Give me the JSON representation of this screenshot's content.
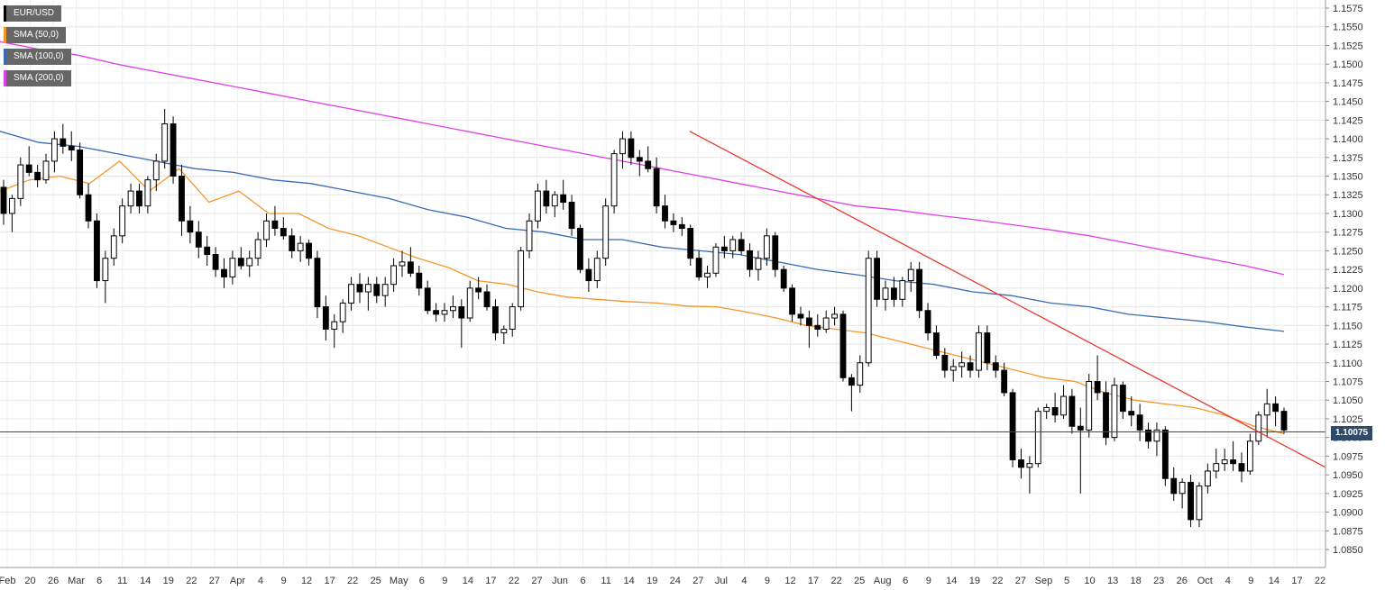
{
  "chart_data": {
    "type": "candlestick",
    "symbol": "EUR/USD",
    "legend": [
      {
        "label": "EUR/USD",
        "color": "#000000"
      },
      {
        "label": "SMA (50,0)",
        "color": "#f5962b"
      },
      {
        "label": "SMA (100,0)",
        "color": "#3a6ab4"
      },
      {
        "label": "SMA (200,0)",
        "color": "#e040e8"
      }
    ],
    "current_price_label": "1.10075",
    "current_price": 1.10075,
    "ylim": [
      1.0825,
      1.1585
    ],
    "y_ticks": [
      "1.1575",
      "1.1550",
      "1.1525",
      "1.1500",
      "1.1475",
      "1.1450",
      "1.1425",
      "1.1400",
      "1.1375",
      "1.1350",
      "1.1325",
      "1.1300",
      "1.1275",
      "1.1250",
      "1.1225",
      "1.1200",
      "1.1175",
      "1.1150",
      "1.1125",
      "1.1100",
      "1.1075",
      "1.1050",
      "1.1025",
      "1.1000",
      "1.0975",
      "1.0950",
      "1.0925",
      "1.0900",
      "1.0875",
      "1.0850"
    ],
    "x_ticks": [
      "Feb",
      "20",
      "26",
      "Mar",
      "6",
      "11",
      "14",
      "19",
      "22",
      "27",
      "Apr",
      "4",
      "9",
      "12",
      "17",
      "22",
      "25",
      "May",
      "6",
      "9",
      "14",
      "17",
      "22",
      "27",
      "Jun",
      "6",
      "11",
      "14",
      "19",
      "24",
      "27",
      "Jul",
      "4",
      "9",
      "12",
      "17",
      "22",
      "25",
      "Aug",
      "6",
      "9",
      "14",
      "19",
      "22",
      "27",
      "Sep",
      "5",
      "10",
      "13",
      "18",
      "23",
      "26",
      "Oct",
      "4",
      "9",
      "14",
      "17",
      "22"
    ],
    "candles": [
      [
        1.1335,
        1.1345,
        1.1285,
        1.13
      ],
      [
        1.13,
        1.1325,
        1.1275,
        1.132
      ],
      [
        1.132,
        1.1375,
        1.131,
        1.1365
      ],
      [
        1.1365,
        1.139,
        1.135,
        1.1355
      ],
      [
        1.1355,
        1.1365,
        1.1335,
        1.1345
      ],
      [
        1.1345,
        1.138,
        1.134,
        1.137
      ],
      [
        1.137,
        1.141,
        1.1355,
        1.14
      ],
      [
        1.14,
        1.142,
        1.138,
        1.139
      ],
      [
        1.139,
        1.141,
        1.137,
        1.1385
      ],
      [
        1.1385,
        1.1395,
        1.132,
        1.1325
      ],
      [
        1.1325,
        1.134,
        1.128,
        1.129
      ],
      [
        1.129,
        1.13,
        1.12,
        1.121
      ],
      [
        1.121,
        1.125,
        1.118,
        1.124
      ],
      [
        1.124,
        1.128,
        1.123,
        1.127
      ],
      [
        1.127,
        1.132,
        1.126,
        1.131
      ],
      [
        1.131,
        1.134,
        1.13,
        1.133
      ],
      [
        1.133,
        1.134,
        1.13,
        1.131
      ],
      [
        1.131,
        1.135,
        1.13,
        1.1345
      ],
      [
        1.1345,
        1.138,
        1.133,
        1.137
      ],
      [
        1.137,
        1.144,
        1.136,
        1.142
      ],
      [
        1.142,
        1.143,
        1.134,
        1.135
      ],
      [
        1.135,
        1.1365,
        1.127,
        1.129
      ],
      [
        1.129,
        1.131,
        1.126,
        1.1275
      ],
      [
        1.1275,
        1.129,
        1.124,
        1.1255
      ],
      [
        1.1255,
        1.127,
        1.123,
        1.1245
      ],
      [
        1.1245,
        1.1255,
        1.1215,
        1.1225
      ],
      [
        1.1225,
        1.124,
        1.12,
        1.1215
      ],
      [
        1.1215,
        1.125,
        1.1205,
        1.124
      ],
      [
        1.124,
        1.1255,
        1.1225,
        1.123
      ],
      [
        1.123,
        1.125,
        1.1215,
        1.124
      ],
      [
        1.124,
        1.1275,
        1.123,
        1.1265
      ],
      [
        1.1265,
        1.13,
        1.1255,
        1.129
      ],
      [
        1.129,
        1.131,
        1.127,
        1.128
      ],
      [
        1.128,
        1.1295,
        1.1265,
        1.127
      ],
      [
        1.127,
        1.128,
        1.124,
        1.125
      ],
      [
        1.125,
        1.127,
        1.1235,
        1.126
      ],
      [
        1.126,
        1.1265,
        1.123,
        1.124
      ],
      [
        1.124,
        1.125,
        1.116,
        1.1175
      ],
      [
        1.1175,
        1.119,
        1.113,
        1.1145
      ],
      [
        1.1145,
        1.1165,
        1.112,
        1.1155
      ],
      [
        1.1155,
        1.1185,
        1.114,
        1.118
      ],
      [
        1.118,
        1.1215,
        1.117,
        1.1205
      ],
      [
        1.1205,
        1.122,
        1.118,
        1.1195
      ],
      [
        1.1195,
        1.1215,
        1.117,
        1.1205
      ],
      [
        1.1205,
        1.1215,
        1.118,
        1.119
      ],
      [
        1.119,
        1.1215,
        1.1175,
        1.1205
      ],
      [
        1.1205,
        1.124,
        1.1195,
        1.123
      ],
      [
        1.123,
        1.125,
        1.1215,
        1.1235
      ],
      [
        1.1235,
        1.1255,
        1.1215,
        1.122
      ],
      [
        1.122,
        1.123,
        1.119,
        1.12
      ],
      [
        1.12,
        1.121,
        1.1165,
        1.117
      ],
      [
        1.117,
        1.118,
        1.1155,
        1.1165
      ],
      [
        1.1165,
        1.118,
        1.1155,
        1.117
      ],
      [
        1.117,
        1.119,
        1.116,
        1.1175
      ],
      [
        1.1175,
        1.1185,
        1.112,
        1.116
      ],
      [
        1.116,
        1.121,
        1.1155,
        1.12
      ],
      [
        1.12,
        1.1215,
        1.1185,
        1.1195
      ],
      [
        1.1195,
        1.1205,
        1.117,
        1.1175
      ],
      [
        1.1175,
        1.1185,
        1.113,
        1.114
      ],
      [
        1.114,
        1.115,
        1.1125,
        1.1145
      ],
      [
        1.1145,
        1.118,
        1.1135,
        1.1175
      ],
      [
        1.1175,
        1.1255,
        1.117,
        1.125
      ],
      [
        1.125,
        1.13,
        1.124,
        1.129
      ],
      [
        1.129,
        1.134,
        1.128,
        1.133
      ],
      [
        1.133,
        1.1345,
        1.13,
        1.131
      ],
      [
        1.131,
        1.133,
        1.1295,
        1.1325
      ],
      [
        1.1325,
        1.1345,
        1.1305,
        1.1315
      ],
      [
        1.1315,
        1.1325,
        1.127,
        1.128
      ],
      [
        1.128,
        1.1285,
        1.122,
        1.1225
      ],
      [
        1.1225,
        1.124,
        1.1195,
        1.121
      ],
      [
        1.121,
        1.125,
        1.12,
        1.124
      ],
      [
        1.124,
        1.132,
        1.123,
        1.131
      ],
      [
        1.131,
        1.1385,
        1.13,
        1.138
      ],
      [
        1.138,
        1.141,
        1.136,
        1.14
      ],
      [
        1.14,
        1.141,
        1.1365,
        1.1375
      ],
      [
        1.1375,
        1.1385,
        1.135,
        1.137
      ],
      [
        1.137,
        1.139,
        1.1355,
        1.136
      ],
      [
        1.136,
        1.1375,
        1.13,
        1.131
      ],
      [
        1.131,
        1.1325,
        1.128,
        1.129
      ],
      [
        1.129,
        1.13,
        1.1275,
        1.1285
      ],
      [
        1.1285,
        1.1295,
        1.127,
        1.128
      ],
      [
        1.128,
        1.1285,
        1.123,
        1.124
      ],
      [
        1.124,
        1.125,
        1.121,
        1.1215
      ],
      [
        1.1215,
        1.123,
        1.12,
        1.122
      ],
      [
        1.122,
        1.126,
        1.1215,
        1.1255
      ],
      [
        1.1255,
        1.127,
        1.124,
        1.125
      ],
      [
        1.125,
        1.127,
        1.124,
        1.1265
      ],
      [
        1.1265,
        1.1275,
        1.1245,
        1.125
      ],
      [
        1.125,
        1.126,
        1.1215,
        1.1225
      ],
      [
        1.1225,
        1.125,
        1.121,
        1.124
      ],
      [
        1.124,
        1.128,
        1.123,
        1.127
      ],
      [
        1.127,
        1.1275,
        1.1215,
        1.1225
      ],
      [
        1.1225,
        1.123,
        1.1195,
        1.12
      ],
      [
        1.12,
        1.1205,
        1.1155,
        1.1165
      ],
      [
        1.1165,
        1.1175,
        1.115,
        1.116
      ],
      [
        1.116,
        1.117,
        1.112,
        1.115
      ],
      [
        1.115,
        1.1165,
        1.1135,
        1.1145
      ],
      [
        1.1145,
        1.117,
        1.114,
        1.116
      ],
      [
        1.116,
        1.1175,
        1.115,
        1.1165
      ],
      [
        1.1165,
        1.117,
        1.1075,
        1.108
      ],
      [
        1.108,
        1.1085,
        1.1035,
        1.107
      ],
      [
        1.107,
        1.111,
        1.106,
        1.11
      ],
      [
        1.11,
        1.125,
        1.1095,
        1.124
      ],
      [
        1.124,
        1.125,
        1.1175,
        1.1185
      ],
      [
        1.1185,
        1.121,
        1.117,
        1.12
      ],
      [
        1.12,
        1.1215,
        1.1175,
        1.1185
      ],
      [
        1.1185,
        1.1215,
        1.1175,
        1.121
      ],
      [
        1.121,
        1.1235,
        1.1195,
        1.1225
      ],
      [
        1.1225,
        1.1235,
        1.116,
        1.117
      ],
      [
        1.117,
        1.118,
        1.113,
        1.114
      ],
      [
        1.114,
        1.115,
        1.1105,
        1.111
      ],
      [
        1.111,
        1.112,
        1.108,
        1.109
      ],
      [
        1.109,
        1.1105,
        1.1075,
        1.1095
      ],
      [
        1.1095,
        1.1115,
        1.108,
        1.11
      ],
      [
        1.11,
        1.111,
        1.108,
        1.109
      ],
      [
        1.109,
        1.115,
        1.108,
        1.114
      ],
      [
        1.114,
        1.115,
        1.109,
        1.11
      ],
      [
        1.11,
        1.111,
        1.108,
        1.109
      ],
      [
        1.109,
        1.11,
        1.1055,
        1.106
      ],
      [
        1.106,
        1.1065,
        1.096,
        1.097
      ],
      [
        1.097,
        1.0985,
        1.0945,
        1.096
      ],
      [
        1.096,
        1.0975,
        1.0925,
        1.0965
      ],
      [
        1.0965,
        1.104,
        1.096,
        1.1035
      ],
      [
        1.1035,
        1.1045,
        1.1025,
        1.104
      ],
      [
        1.104,
        1.106,
        1.102,
        1.103
      ],
      [
        1.103,
        1.107,
        1.1025,
        1.1055
      ],
      [
        1.1055,
        1.1065,
        1.1005,
        1.1015
      ],
      [
        1.1015,
        1.104,
        1.0925,
        1.101
      ],
      [
        1.101,
        1.1085,
        1.1,
        1.1075
      ],
      [
        1.1075,
        1.111,
        1.105,
        1.106
      ],
      [
        1.106,
        1.1075,
        1.099,
        1.1
      ],
      [
        1.1,
        1.108,
        1.0995,
        1.107
      ],
      [
        1.107,
        1.1075,
        1.1025,
        1.1035
      ],
      [
        1.1035,
        1.1055,
        1.1015,
        1.103
      ],
      [
        1.103,
        1.1045,
        1.0995,
        1.101
      ],
      [
        1.101,
        1.102,
        1.0985,
        1.0995
      ],
      [
        1.0995,
        1.102,
        1.0975,
        1.101
      ],
      [
        1.101,
        1.1015,
        1.0935,
        1.0945
      ],
      [
        1.0945,
        1.096,
        1.0915,
        1.0925
      ],
      [
        1.0925,
        1.0945,
        1.0905,
        1.094
      ],
      [
        1.094,
        1.095,
        1.088,
        1.089
      ],
      [
        1.089,
        1.094,
        1.088,
        1.0935
      ],
      [
        1.0935,
        1.0965,
        1.0925,
        1.0955
      ],
      [
        1.0955,
        1.0985,
        1.0945,
        1.0965
      ],
      [
        1.0965,
        1.0985,
        1.0955,
        1.097
      ],
      [
        1.097,
        1.0995,
        1.0955,
        1.0965
      ],
      [
        1.0965,
        1.098,
        1.094,
        1.0955
      ],
      [
        1.0955,
        1.1005,
        1.095,
        1.0995
      ],
      [
        1.0995,
        1.1035,
        1.099,
        1.103
      ],
      [
        1.103,
        1.1065,
        1.1,
        1.1045
      ],
      [
        1.1045,
        1.1055,
        1.1015,
        1.1035
      ],
      [
        1.1035,
        1.104,
        1.1005,
        1.101
      ]
    ],
    "sma50": [
      [
        1.133,
        1.1345
      ],
      [
        1.135,
        1.134
      ],
      [
        1.137,
        1.133
      ],
      [
        1.136,
        1.1315
      ],
      [
        1.133,
        1.13
      ],
      [
        1.13,
        1.128
      ],
      [
        1.127,
        1.1255
      ],
      [
        1.124,
        1.1228
      ],
      [
        1.121,
        1.1205
      ],
      [
        1.1195,
        1.1188
      ],
      [
        1.1185,
        1.1182
      ],
      [
        1.118,
        1.1176
      ],
      [
        1.1175,
        1.1168
      ],
      [
        1.116,
        1.115
      ],
      [
        1.1145,
        1.114
      ],
      [
        1.113,
        1.112
      ],
      [
        1.111,
        1.11
      ],
      [
        1.109,
        1.108
      ],
      [
        1.1075,
        1.106
      ],
      [
        1.105,
        1.1045
      ],
      [
        1.104,
        1.103
      ],
      [
        1.1015,
        1.1005
      ]
    ],
    "sma100": [
      [
        1.141,
        1.1395
      ],
      [
        1.139,
        1.138
      ],
      [
        1.137,
        1.136
      ],
      [
        1.1355,
        1.1345
      ],
      [
        1.134,
        1.133
      ],
      [
        1.132,
        1.1305
      ],
      [
        1.1295,
        1.128
      ],
      [
        1.1275,
        1.1265
      ],
      [
        1.1265,
        1.1255
      ],
      [
        1.125,
        1.1245
      ],
      [
        1.1235,
        1.1225
      ],
      [
        1.1218,
        1.121
      ],
      [
        1.1205,
        1.1195
      ],
      [
        1.119,
        1.118
      ],
      [
        1.1175,
        1.1165
      ],
      [
        1.116,
        1.1155
      ],
      [
        1.1148,
        1.1142
      ]
    ],
    "sma200": [
      [
        1.153,
        1.152
      ],
      [
        1.1512,
        1.15
      ],
      [
        1.149,
        1.148
      ],
      [
        1.147,
        1.146
      ],
      [
        1.145,
        1.144
      ],
      [
        1.143,
        1.142
      ],
      [
        1.141,
        1.14
      ],
      [
        1.139,
        1.138
      ],
      [
        1.137,
        1.136
      ],
      [
        1.135,
        1.134
      ],
      [
        1.133,
        1.132
      ],
      [
        1.131,
        1.1305
      ],
      [
        1.1298,
        1.1292
      ],
      [
        1.1285,
        1.1278
      ],
      [
        1.127,
        1.126
      ],
      [
        1.125,
        1.124
      ],
      [
        1.123,
        1.1218
      ]
    ],
    "trendline": {
      "from": [
        1.141
      ],
      "to": [
        1.096
      ],
      "color": "#e8392f"
    },
    "grid": true
  }
}
